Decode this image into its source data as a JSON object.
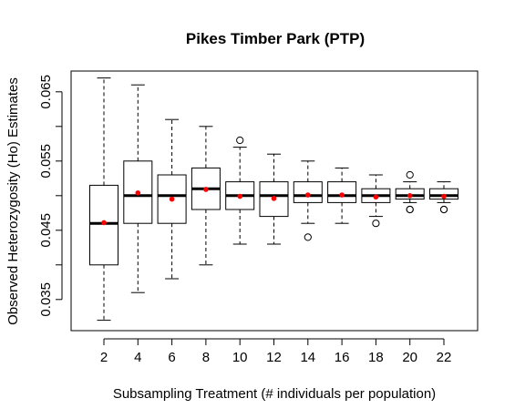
{
  "chart_data": {
    "type": "boxplot",
    "title": "Pikes Timber Park (PTP)",
    "xlabel": "Subsampling Treatment (# individuals per population)",
    "ylabel": "Observed Heterozygosity (Ho) Estimates",
    "ylim": [
      0.0305,
      0.068
    ],
    "yticks": [
      0.035,
      0.04,
      0.045,
      0.05,
      0.055,
      0.06,
      0.065
    ],
    "ytick_labels": [
      "0.035",
      "",
      "0.045",
      "",
      "0.055",
      "",
      "0.065"
    ],
    "categories": [
      "2",
      "4",
      "6",
      "8",
      "10",
      "12",
      "14",
      "16",
      "18",
      "20",
      "22"
    ],
    "colors": {
      "box": "#000000",
      "mean_marker": "#ff0000",
      "background": "#ffffff"
    },
    "boxes": [
      {
        "category": "2",
        "whisker_low": 0.032,
        "q1": 0.04,
        "median": 0.046,
        "q3": 0.0515,
        "whisker_high": 0.067,
        "mean": 0.0461,
        "outliers": []
      },
      {
        "category": "4",
        "whisker_low": 0.036,
        "q1": 0.046,
        "median": 0.05,
        "q3": 0.055,
        "whisker_high": 0.066,
        "mean": 0.0504,
        "outliers": []
      },
      {
        "category": "6",
        "whisker_low": 0.038,
        "q1": 0.046,
        "median": 0.05,
        "q3": 0.053,
        "whisker_high": 0.061,
        "mean": 0.0495,
        "outliers": []
      },
      {
        "category": "8",
        "whisker_low": 0.04,
        "q1": 0.048,
        "median": 0.051,
        "q3": 0.054,
        "whisker_high": 0.06,
        "mean": 0.0509,
        "outliers": []
      },
      {
        "category": "10",
        "whisker_low": 0.043,
        "q1": 0.048,
        "median": 0.05,
        "q3": 0.052,
        "whisker_high": 0.057,
        "mean": 0.0499,
        "outliers": [
          0.058
        ]
      },
      {
        "category": "12",
        "whisker_low": 0.043,
        "q1": 0.047,
        "median": 0.05,
        "q3": 0.052,
        "whisker_high": 0.056,
        "mean": 0.0496,
        "outliers": []
      },
      {
        "category": "14",
        "whisker_low": 0.046,
        "q1": 0.049,
        "median": 0.05,
        "q3": 0.052,
        "whisker_high": 0.055,
        "mean": 0.0501,
        "outliers": [
          0.044
        ]
      },
      {
        "category": "16",
        "whisker_low": 0.046,
        "q1": 0.049,
        "median": 0.05,
        "q3": 0.052,
        "whisker_high": 0.054,
        "mean": 0.0501,
        "outliers": []
      },
      {
        "category": "18",
        "whisker_low": 0.047,
        "q1": 0.049,
        "median": 0.05,
        "q3": 0.051,
        "whisker_high": 0.053,
        "mean": 0.0498,
        "outliers": [
          0.046
        ]
      },
      {
        "category": "20",
        "whisker_low": 0.049,
        "q1": 0.0495,
        "median": 0.05,
        "q3": 0.051,
        "whisker_high": 0.052,
        "mean": 0.05,
        "outliers": [
          0.053,
          0.048,
          0.048
        ]
      },
      {
        "category": "22",
        "whisker_low": 0.049,
        "q1": 0.0495,
        "median": 0.05,
        "q3": 0.051,
        "whisker_high": 0.052,
        "mean": 0.0499,
        "outliers": [
          0.048,
          0.048
        ]
      }
    ]
  }
}
